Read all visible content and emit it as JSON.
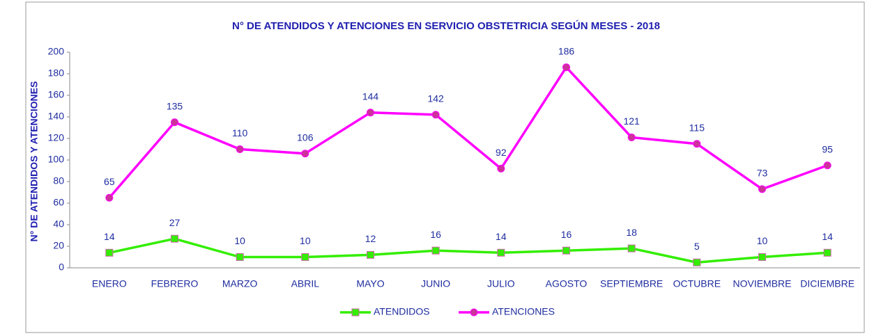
{
  "chart_data": {
    "type": "line",
    "title": "N° DE ATENDIDOS Y ATENCIONES EN SERVICIO OBSTETRICIA SEGÚN MESES - 2018",
    "ylabel": "N° DE ATENDIDOS Y ATENCIONES",
    "categories": [
      "ENERO",
      "FEBRERO",
      "MARZO",
      "ABRIL",
      "MAYO",
      "JUNIO",
      "JULIO",
      "AGOSTO",
      "SEPTIEMBRE",
      "OCTUBRE",
      "NOVIEMBRE",
      "DICIEMBRE"
    ],
    "series": [
      {
        "name": "ATENDIDOS",
        "color": "#33ee00",
        "marker_color": "#cc66aa",
        "values": [
          14,
          27,
          10,
          10,
          12,
          16,
          14,
          16,
          18,
          5,
          10,
          14
        ]
      },
      {
        "name": "ATENCIONES",
        "color": "#ff00ff",
        "marker_color": "#cc3399",
        "values": [
          65,
          135,
          110,
          106,
          144,
          142,
          92,
          186,
          121,
          115,
          73,
          95
        ]
      }
    ],
    "ylim": [
      0,
      200
    ],
    "yticks": [
      0,
      20,
      40,
      60,
      80,
      100,
      120,
      140,
      160,
      180,
      200
    ],
    "grid": false,
    "legend": "bottom"
  }
}
